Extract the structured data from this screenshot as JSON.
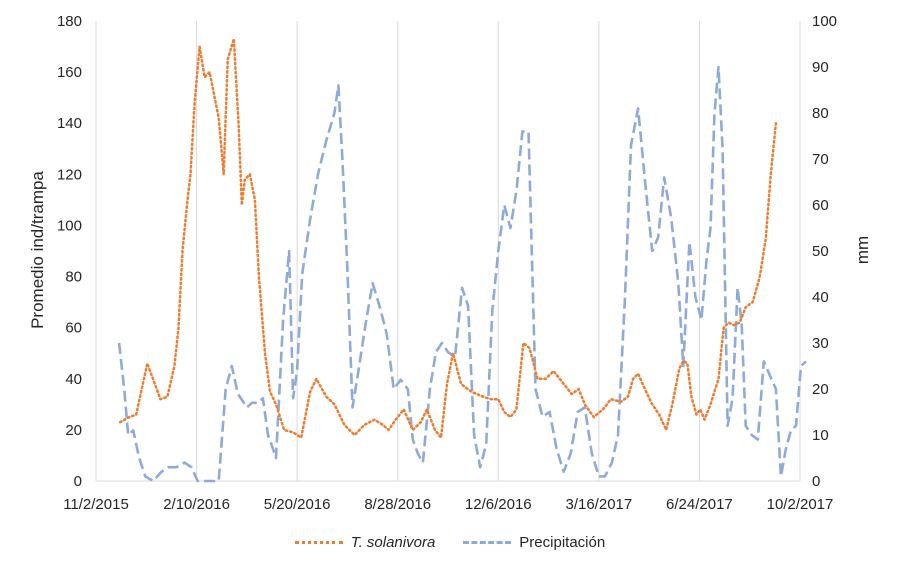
{
  "chart_data": {
    "type": "line",
    "xlabel": "",
    "ylabel": "Promedio ind/trampa",
    "y2label": "mm",
    "x_ticks": [
      "11/2/2015",
      "2/10/2016",
      "5/20/2016",
      "8/28/2016",
      "12/6/2016",
      "3/16/2017",
      "6/24/2017",
      "10/2/2017"
    ],
    "xlim": [
      "2015-11-02",
      "2017-10-02"
    ],
    "ylim": [
      0,
      180
    ],
    "y_ticks": [
      0,
      20,
      40,
      60,
      80,
      100,
      120,
      140,
      160,
      180
    ],
    "y2lim": [
      0,
      100
    ],
    "y2_ticks": [
      0,
      10,
      20,
      30,
      40,
      50,
      60,
      70,
      80,
      90,
      100
    ],
    "grid": "vertical",
    "legend_position": "bottom",
    "series": [
      {
        "name": "T. solanivora",
        "axis": "left",
        "color": "#ed7d31",
        "style": "dotted",
        "points": [
          [
            "2015-11-26",
            23
          ],
          [
            "2015-12-05",
            25
          ],
          [
            "2015-12-12",
            26
          ],
          [
            "2015-12-23",
            46
          ],
          [
            "2016-01-05",
            32
          ],
          [
            "2016-01-12",
            33
          ],
          [
            "2016-01-19",
            45
          ],
          [
            "2016-01-23",
            60
          ],
          [
            "2016-01-27",
            90
          ],
          [
            "2016-02-01",
            110
          ],
          [
            "2016-02-04",
            120
          ],
          [
            "2016-02-08",
            148
          ],
          [
            "2016-02-13",
            170
          ],
          [
            "2016-02-18",
            158
          ],
          [
            "2016-02-23",
            160
          ],
          [
            "2016-03-03",
            142
          ],
          [
            "2016-03-08",
            120
          ],
          [
            "2016-03-12",
            165
          ],
          [
            "2016-03-18",
            173
          ],
          [
            "2016-03-23",
            138
          ],
          [
            "2016-03-26",
            108
          ],
          [
            "2016-03-29",
            118
          ],
          [
            "2016-04-03",
            120
          ],
          [
            "2016-04-08",
            110
          ],
          [
            "2016-04-12",
            80
          ],
          [
            "2016-04-18",
            50
          ],
          [
            "2016-04-23",
            35
          ],
          [
            "2016-04-29",
            30
          ],
          [
            "2016-05-07",
            20
          ],
          [
            "2016-05-16",
            19
          ],
          [
            "2016-05-24",
            17
          ],
          [
            "2016-06-02",
            35
          ],
          [
            "2016-06-08",
            40
          ],
          [
            "2016-06-18",
            33
          ],
          [
            "2016-06-26",
            30
          ],
          [
            "2016-07-06",
            22
          ],
          [
            "2016-07-16",
            18
          ],
          [
            "2016-07-26",
            22
          ],
          [
            "2016-08-05",
            24
          ],
          [
            "2016-08-13",
            22
          ],
          [
            "2016-08-19",
            20
          ],
          [
            "2016-08-26",
            24
          ],
          [
            "2016-09-03",
            28
          ],
          [
            "2016-09-12",
            20
          ],
          [
            "2016-09-20",
            23
          ],
          [
            "2016-09-26",
            28
          ],
          [
            "2016-10-04",
            20
          ],
          [
            "2016-10-10",
            17
          ],
          [
            "2016-10-16",
            38
          ],
          [
            "2016-10-22",
            50
          ],
          [
            "2016-10-30",
            38
          ],
          [
            "2016-11-09",
            35
          ],
          [
            "2016-11-21",
            33
          ],
          [
            "2016-11-29",
            32
          ],
          [
            "2016-12-06",
            32
          ],
          [
            "2016-12-12",
            27
          ],
          [
            "2016-12-18",
            25
          ],
          [
            "2016-12-24",
            28
          ],
          [
            "2016-12-31",
            54
          ],
          [
            "2017-01-06",
            52
          ],
          [
            "2017-01-14",
            40
          ],
          [
            "2017-01-22",
            40
          ],
          [
            "2017-01-30",
            43
          ],
          [
            "2017-02-09",
            38
          ],
          [
            "2017-02-17",
            34
          ],
          [
            "2017-02-24",
            36
          ],
          [
            "2017-03-02",
            30
          ],
          [
            "2017-03-11",
            25
          ],
          [
            "2017-03-20",
            28
          ],
          [
            "2017-03-28",
            32
          ],
          [
            "2017-04-07",
            31
          ],
          [
            "2017-04-14",
            33
          ],
          [
            "2017-04-19",
            40
          ],
          [
            "2017-04-24",
            42
          ],
          [
            "2017-05-02",
            35
          ],
          [
            "2017-05-08",
            30
          ],
          [
            "2017-05-15",
            26
          ],
          [
            "2017-05-22",
            20
          ],
          [
            "2017-05-28",
            30
          ],
          [
            "2017-06-04",
            44
          ],
          [
            "2017-06-08",
            47
          ],
          [
            "2017-06-12",
            46
          ],
          [
            "2017-06-16",
            33
          ],
          [
            "2017-06-21",
            26
          ],
          [
            "2017-06-25",
            28
          ],
          [
            "2017-06-29",
            24
          ],
          [
            "2017-07-05",
            30
          ],
          [
            "2017-07-13",
            40
          ],
          [
            "2017-07-18",
            60
          ],
          [
            "2017-07-23",
            62
          ],
          [
            "2017-07-28",
            61
          ],
          [
            "2017-08-03",
            62
          ],
          [
            "2017-08-09",
            68
          ],
          [
            "2017-08-16",
            70
          ],
          [
            "2017-08-23",
            80
          ],
          [
            "2017-08-29",
            95
          ],
          [
            "2017-09-03",
            120
          ],
          [
            "2017-09-08",
            140
          ]
        ]
      },
      {
        "name": "Precipitación",
        "axis": "right",
        "color": "#8eaadb",
        "style": "dashed",
        "points": [
          [
            "2015-11-25",
            30
          ],
          [
            "2015-11-30",
            20
          ],
          [
            "2015-12-04",
            10
          ],
          [
            "2015-12-09",
            11
          ],
          [
            "2015-12-15",
            5
          ],
          [
            "2015-12-21",
            1
          ],
          [
            "2015-12-29",
            0
          ],
          [
            "2016-01-06",
            2
          ],
          [
            "2016-01-13",
            3
          ],
          [
            "2016-01-21",
            3
          ],
          [
            "2016-01-29",
            4
          ],
          [
            "2016-02-05",
            3
          ],
          [
            "2016-02-11",
            0
          ],
          [
            "2016-02-19",
            0
          ],
          [
            "2016-02-26",
            0
          ],
          [
            "2016-03-03",
            0
          ],
          [
            "2016-03-10",
            20
          ],
          [
            "2016-03-16",
            25
          ],
          [
            "2016-03-22",
            19
          ],
          [
            "2016-03-31",
            16
          ],
          [
            "2016-04-05",
            17
          ],
          [
            "2016-04-11",
            17
          ],
          [
            "2016-04-16",
            18
          ],
          [
            "2016-04-21",
            10
          ],
          [
            "2016-04-26",
            7
          ],
          [
            "2016-04-29",
            5
          ],
          [
            "2016-05-06",
            35
          ],
          [
            "2016-05-12",
            50
          ],
          [
            "2016-05-16",
            18
          ],
          [
            "2016-05-20",
            24
          ],
          [
            "2016-05-25",
            45
          ],
          [
            "2016-06-02",
            57
          ],
          [
            "2016-06-10",
            67
          ],
          [
            "2016-06-18",
            74
          ],
          [
            "2016-06-26",
            80
          ],
          [
            "2016-06-30",
            86
          ],
          [
            "2016-07-04",
            70
          ],
          [
            "2016-07-09",
            46
          ],
          [
            "2016-07-14",
            16
          ],
          [
            "2016-07-20",
            24
          ],
          [
            "2016-07-27",
            34
          ],
          [
            "2016-08-03",
            43
          ],
          [
            "2016-08-10",
            38
          ],
          [
            "2016-08-17",
            32
          ],
          [
            "2016-08-24",
            20
          ],
          [
            "2016-08-31",
            22
          ],
          [
            "2016-09-07",
            20
          ],
          [
            "2016-09-12",
            9
          ],
          [
            "2016-09-17",
            6
          ],
          [
            "2016-09-22",
            4
          ],
          [
            "2016-09-29",
            20
          ],
          [
            "2016-10-05",
            28
          ],
          [
            "2016-10-11",
            30
          ],
          [
            "2016-10-17",
            28
          ],
          [
            "2016-10-24",
            27
          ],
          [
            "2016-10-31",
            42
          ],
          [
            "2016-11-06",
            38
          ],
          [
            "2016-11-12",
            10
          ],
          [
            "2016-11-18",
            3
          ],
          [
            "2016-11-24",
            8
          ],
          [
            "2016-11-30",
            37
          ],
          [
            "2016-12-06",
            50
          ],
          [
            "2016-12-12",
            60
          ],
          [
            "2016-12-18",
            55
          ],
          [
            "2016-12-24",
            63
          ],
          [
            "2016-12-30",
            76
          ],
          [
            "2017-01-05",
            76
          ],
          [
            "2017-01-12",
            20
          ],
          [
            "2017-01-19",
            14
          ],
          [
            "2017-01-26",
            15
          ],
          [
            "2017-02-02",
            7
          ],
          [
            "2017-02-09",
            2
          ],
          [
            "2017-02-16",
            6
          ],
          [
            "2017-02-23",
            15
          ],
          [
            "2017-03-02",
            16
          ],
          [
            "2017-03-09",
            6
          ],
          [
            "2017-03-16",
            1
          ],
          [
            "2017-03-22",
            1
          ],
          [
            "2017-03-29",
            4
          ],
          [
            "2017-04-04",
            10
          ],
          [
            "2017-04-11",
            40
          ],
          [
            "2017-04-17",
            73
          ],
          [
            "2017-04-24",
            81
          ],
          [
            "2017-05-01",
            65
          ],
          [
            "2017-05-08",
            50
          ],
          [
            "2017-05-14",
            53
          ],
          [
            "2017-05-20",
            66
          ],
          [
            "2017-05-27",
            57
          ],
          [
            "2017-06-03",
            43
          ],
          [
            "2017-06-08",
            25
          ],
          [
            "2017-06-14",
            52
          ],
          [
            "2017-06-20",
            40
          ],
          [
            "2017-06-26",
            35
          ],
          [
            "2017-07-01",
            48
          ],
          [
            "2017-07-05",
            55
          ],
          [
            "2017-07-09",
            80
          ],
          [
            "2017-07-13",
            90
          ],
          [
            "2017-07-17",
            72
          ],
          [
            "2017-07-22",
            12
          ],
          [
            "2017-07-27",
            18
          ],
          [
            "2017-08-01",
            42
          ],
          [
            "2017-08-05",
            34
          ],
          [
            "2017-08-09",
            12
          ],
          [
            "2017-08-15",
            10
          ],
          [
            "2017-08-21",
            9
          ],
          [
            "2017-08-27",
            26
          ],
          [
            "2017-09-02",
            23
          ],
          [
            "2017-09-08",
            20
          ],
          [
            "2017-09-13",
            1
          ],
          [
            "2017-09-18",
            7
          ],
          [
            "2017-09-23",
            11
          ],
          [
            "2017-09-28",
            12
          ],
          [
            "2017-10-03",
            25
          ],
          [
            "2017-10-08",
            26
          ]
        ]
      }
    ]
  }
}
